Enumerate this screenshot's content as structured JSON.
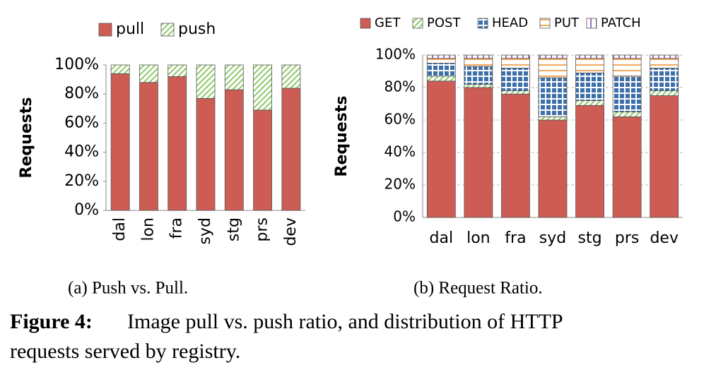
{
  "chart_data": [
    {
      "type": "stacked_bar",
      "caption": "(a)  Push vs. Pull.",
      "y_label": "Requests",
      "categories": [
        "dal",
        "lon",
        "fra",
        "syd",
        "stg",
        "prs",
        "dev"
      ],
      "series": [
        {
          "name": "pull",
          "color": "#cd5c55",
          "hatch": "none",
          "values": [
            94,
            88,
            92,
            77,
            83,
            69,
            84
          ]
        },
        {
          "name": "push",
          "color": "#8cc866",
          "hatch": "diagonal",
          "values": [
            6,
            12,
            8,
            23,
            17,
            31,
            16
          ]
        }
      ],
      "ylim": [
        0,
        100
      ],
      "yticks": [
        {
          "value": 0,
          "label": "0%"
        },
        {
          "value": 20,
          "label": "20%"
        },
        {
          "value": 40,
          "label": "40%"
        },
        {
          "value": 60,
          "label": "60%"
        },
        {
          "value": 80,
          "label": "80%"
        },
        {
          "value": 100,
          "label": "100%"
        }
      ],
      "grid": false,
      "x_label_rotation": -90
    },
    {
      "type": "stacked_bar",
      "caption": "(b)  Request Ratio.",
      "y_label": "Requests",
      "categories": [
        "dal",
        "lon",
        "fra",
        "syd",
        "stg",
        "prs",
        "dev"
      ],
      "series": [
        {
          "name": "GET",
          "color": "#cd5c55",
          "hatch": "none",
          "values": [
            84,
            80,
            76,
            60,
            69,
            62,
            75
          ]
        },
        {
          "name": "POST",
          "color": "#8cc866",
          "hatch": "diagonal",
          "values": [
            3,
            2,
            2,
            2,
            3,
            3,
            3
          ]
        },
        {
          "name": "HEAD",
          "color": "#3d6fa8",
          "hatch": "grid",
          "values": [
            8,
            11,
            14,
            24,
            17,
            22,
            14
          ]
        },
        {
          "name": "PUT",
          "color": "#f0a860",
          "hatch": "horizontal",
          "values": [
            3,
            5,
            6,
            12,
            9,
            11,
            6
          ]
        },
        {
          "name": "PATCH",
          "color": "#a070c0",
          "hatch": "vertical",
          "values": [
            2,
            2,
            2,
            2,
            2,
            2,
            2
          ]
        }
      ],
      "ylim": [
        0,
        100
      ],
      "yticks": [
        {
          "value": 0,
          "label": "0%"
        },
        {
          "value": 20,
          "label": "20%"
        },
        {
          "value": 40,
          "label": "40%"
        },
        {
          "value": 60,
          "label": "60%"
        },
        {
          "value": 80,
          "label": "80%"
        },
        {
          "value": 100,
          "label": "100%"
        }
      ],
      "grid": true,
      "x_label_rotation": 0
    }
  ],
  "figure_caption": {
    "label": "Figure 4:",
    "lines": [
      "Image pull vs. push ratio, and distribution of HTTP",
      "requests served by registry."
    ]
  }
}
